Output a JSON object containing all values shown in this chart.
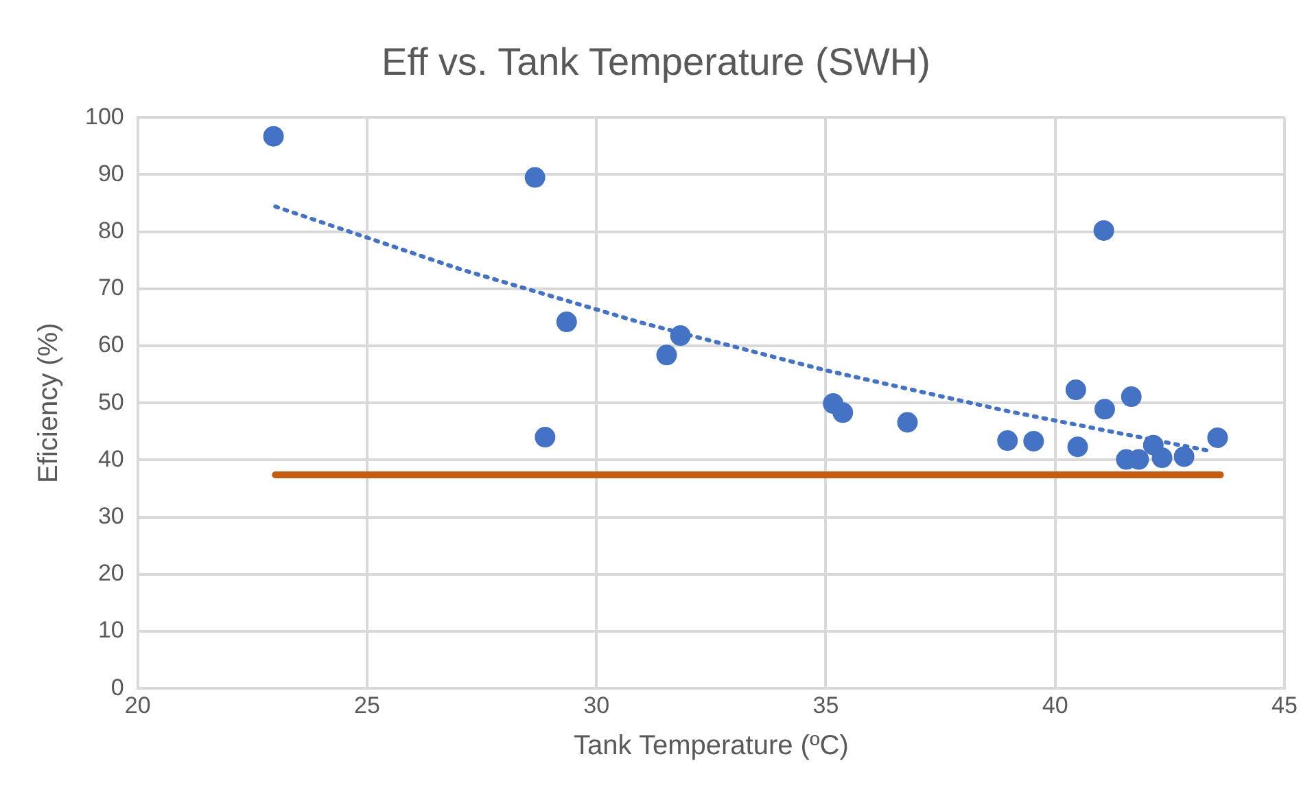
{
  "chart_data": {
    "type": "scatter",
    "title": "Eff vs. Tank Temperature (SWH)",
    "xlabel": "Tank Temperature (ºC)",
    "ylabel": "Eficiency (%)",
    "xlim": [
      20,
      45
    ],
    "xticks": [
      20,
      25,
      30,
      35,
      40,
      45
    ],
    "ylim": [
      0,
      100
    ],
    "yticks": [
      0,
      10,
      20,
      30,
      40,
      50,
      60,
      70,
      80,
      90,
      100
    ],
    "grid": true,
    "legend": false,
    "series": [
      {
        "color": "#4472c4",
        "marker": "circle",
        "x": [
          22.96,
          28.66,
          28.88,
          29.35,
          31.53,
          31.83,
          35.16,
          35.37,
          36.78,
          38.96,
          39.53,
          40.45,
          40.49,
          41.06,
          41.08,
          41.66,
          41.55,
          41.82,
          42.14,
          42.17,
          42.33,
          42.81,
          43.54
        ],
        "values": [
          96.7,
          89.5,
          44.0,
          64.2,
          58.4,
          61.8,
          49.9,
          48.3,
          46.6,
          43.4,
          43.3,
          52.3,
          42.3,
          80.2,
          48.9,
          51.1,
          40.1,
          40.1,
          42.6,
          null,
          40.4,
          40.6,
          43.9
        ]
      },
      {
        "type": "line",
        "color": "#4472c4",
        "line_style": "dotted",
        "marker": "none",
        "x": [
          23,
          27,
          31,
          35,
          39,
          43.3
        ],
        "values": [
          84.4,
          73.5,
          64.0,
          55.7,
          48.5,
          41.7
        ]
      },
      {
        "type": "line",
        "color": "#c55a11",
        "line_style": "solid",
        "marker": "none",
        "x": [
          23,
          43.6
        ],
        "values": [
          37.4,
          37.4
        ]
      }
    ]
  }
}
